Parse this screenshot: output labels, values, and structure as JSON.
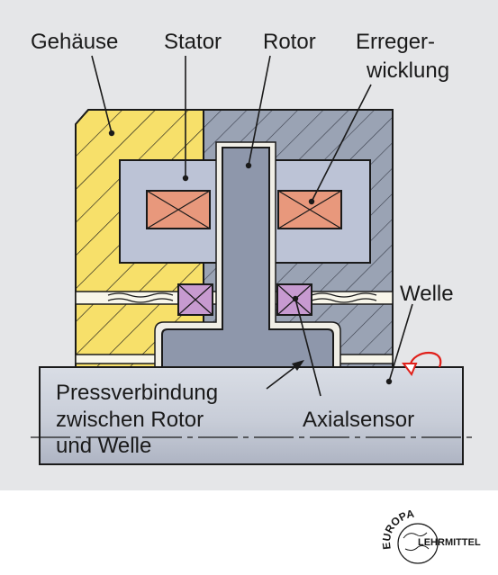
{
  "labels": {
    "gehaeuse": "Gehäuse",
    "stator": "Stator",
    "rotor": "Rotor",
    "erreger_line1": "Erreger-",
    "erreger_line2": "wicklung",
    "welle": "Welle",
    "press_line1": "Pressverbindung",
    "press_line2": "zwischen Rotor",
    "press_line3": "und Welle",
    "axialsensor": "Axialsensor"
  },
  "logo": {
    "arc_text": "EUROPA",
    "name_text": "LEHRMITTEL"
  },
  "colors": {
    "background": "#e5e6e8",
    "housing_yellow": "#f7e06a",
    "housing_gray": "#9aa3b4",
    "stator": "#bcc3d6",
    "rotor": "#8e97ab",
    "winding": "#e8987c",
    "sensor": "#c79ad0",
    "shaft": "#c9ced8",
    "rotation_arrow": "#e0201a"
  }
}
